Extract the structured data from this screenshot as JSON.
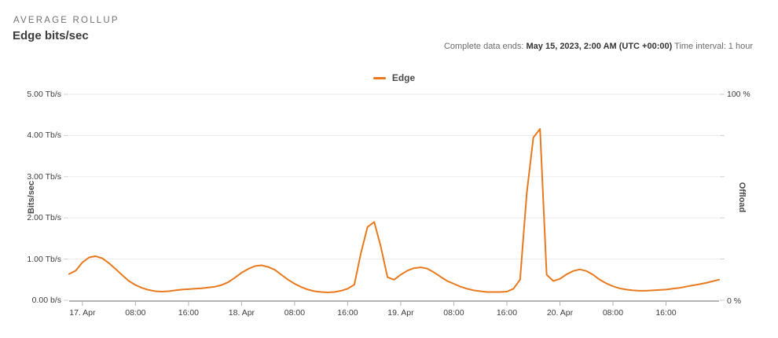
{
  "header": {
    "eyebrow": "AVERAGE ROLLUP",
    "title": "Edge bits/sec",
    "meta_prefix": "Complete data ends: ",
    "meta_bold": "May 15, 2023, 2:00 AM (UTC +00:00)",
    "meta_suffix": " Time interval: 1 hour"
  },
  "legend": [
    {
      "label": "Edge",
      "color": "#e8791d"
    }
  ],
  "chart_data": {
    "type": "line",
    "title": "Edge bits/sec",
    "ylabel": "Bits/sec",
    "ylim_tbps": [
      0,
      5
    ],
    "y_tick_labels": [
      "5.00 Tb/s",
      "4.00 Tb/s",
      "3.00 Tb/s",
      "2.00 Tb/s",
      "1.00 Tb/s",
      "0.00 b/s"
    ],
    "y2label": "Offload",
    "y2lim_percent": [
      0,
      100
    ],
    "y2_tick_labels": [
      "100 %",
      "0 %"
    ],
    "x_tick_labels": [
      "17. Apr",
      "08:00",
      "16:00",
      "18. Apr",
      "08:00",
      "16:00",
      "19. Apr",
      "08:00",
      "16:00",
      "20. Apr",
      "08:00",
      "16:00"
    ],
    "x_tick_point_offsets": [
      2,
      10,
      18,
      26,
      34,
      42,
      50,
      58,
      66,
      74,
      82,
      90
    ],
    "interval_per_point": "1 hour",
    "grid": "horizontal",
    "legend_position": "top-center",
    "line_color": "#e8791d",
    "series": [
      {
        "name": "Edge",
        "unit": "Tb/s",
        "color": "#e8791d",
        "values": [
          0.64,
          0.72,
          0.92,
          1.04,
          1.07,
          1.02,
          0.9,
          0.76,
          0.61,
          0.47,
          0.37,
          0.3,
          0.25,
          0.22,
          0.21,
          0.22,
          0.24,
          0.26,
          0.27,
          0.28,
          0.29,
          0.31,
          0.33,
          0.37,
          0.44,
          0.55,
          0.67,
          0.76,
          0.83,
          0.85,
          0.81,
          0.74,
          0.62,
          0.5,
          0.4,
          0.32,
          0.26,
          0.22,
          0.2,
          0.19,
          0.2,
          0.23,
          0.28,
          0.38,
          1.15,
          1.78,
          1.9,
          1.3,
          0.56,
          0.5,
          0.62,
          0.72,
          0.78,
          0.8,
          0.77,
          0.68,
          0.57,
          0.47,
          0.4,
          0.33,
          0.28,
          0.24,
          0.22,
          0.2,
          0.2,
          0.2,
          0.21,
          0.28,
          0.5,
          2.6,
          3.95,
          4.16,
          0.62,
          0.47,
          0.52,
          0.63,
          0.71,
          0.75,
          0.71,
          0.62,
          0.5,
          0.41,
          0.34,
          0.29,
          0.26,
          0.24,
          0.23,
          0.23,
          0.24,
          0.25,
          0.26,
          0.28,
          0.3,
          0.33,
          0.36,
          0.39,
          0.42,
          0.46,
          0.5
        ]
      }
    ]
  }
}
